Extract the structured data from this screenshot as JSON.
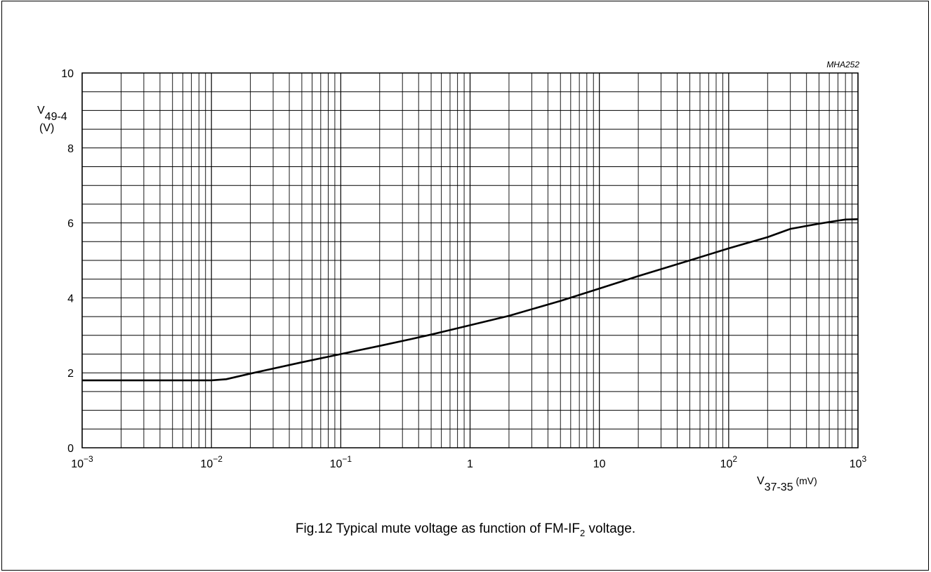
{
  "chart_data": {
    "type": "line",
    "xscale": "log",
    "xlim": [
      0.001,
      1000
    ],
    "ylim": [
      0,
      10
    ],
    "x_ticks": [
      {
        "value": 0.001,
        "base": "10",
        "exp": "−3"
      },
      {
        "value": 0.01,
        "base": "10",
        "exp": "−2"
      },
      {
        "value": 0.1,
        "base": "10",
        "exp": "−1"
      },
      {
        "value": 1,
        "base": "1",
        "exp": ""
      },
      {
        "value": 10,
        "base": "10",
        "exp": ""
      },
      {
        "value": 100,
        "base": "10",
        "exp": "2"
      },
      {
        "value": 1000,
        "base": "10",
        "exp": "3"
      }
    ],
    "y_ticks": [
      0,
      2,
      4,
      6,
      8,
      10
    ],
    "y_minor_step": 0.5,
    "ylabel": {
      "main": "V",
      "sub": "49-4",
      "unit": "(V)"
    },
    "xlabel": {
      "main": "V",
      "sub": "37-35",
      "unit": "(mV)"
    },
    "code": "MHA252",
    "grid": true,
    "series": [
      {
        "points": [
          [
            0.001,
            1.8
          ],
          [
            0.005,
            1.8
          ],
          [
            0.01,
            1.8
          ],
          [
            0.013,
            1.83
          ],
          [
            0.02,
            1.98
          ],
          [
            0.05,
            2.28
          ],
          [
            0.1,
            2.5
          ],
          [
            0.2,
            2.72
          ],
          [
            0.35,
            2.9
          ],
          [
            0.5,
            3.02
          ],
          [
            1,
            3.27
          ],
          [
            2,
            3.52
          ],
          [
            5,
            3.92
          ],
          [
            10,
            4.25
          ],
          [
            20,
            4.58
          ],
          [
            50,
            5.0
          ],
          [
            100,
            5.32
          ],
          [
            200,
            5.62
          ],
          [
            300,
            5.84
          ],
          [
            500,
            5.98
          ],
          [
            700,
            6.06
          ],
          [
            800,
            6.09
          ],
          [
            1000,
            6.1
          ]
        ]
      }
    ]
  },
  "caption": {
    "prefix": "Fig.12  Typical mute voltage as function of FM-IF",
    "sub": "2",
    "suffix": " voltage."
  }
}
